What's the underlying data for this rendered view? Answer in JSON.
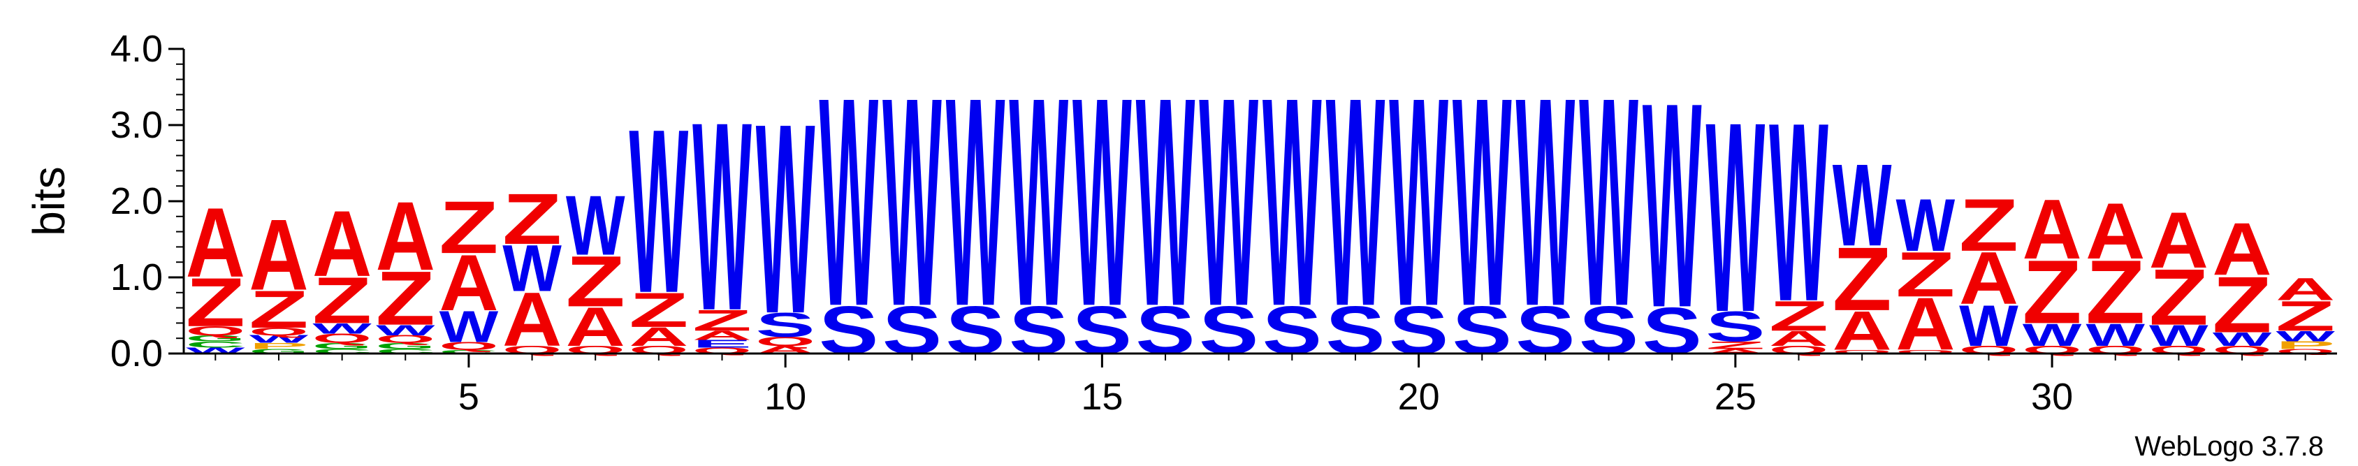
{
  "chart_data": {
    "type": "sequence-logo",
    "ylabel": "bits",
    "ylim": [
      0,
      4.0
    ],
    "yticks": [
      "0.0",
      "1.0",
      "2.0",
      "3.0",
      "4.0"
    ],
    "xticks": [
      5,
      10,
      15,
      20,
      25,
      30
    ],
    "positions": [
      1,
      34
    ],
    "credit": "WebLogo 3.7.8",
    "colors": {
      "A": "#f00000",
      "Z": "#f00000",
      "W": "#0000f0",
      "S": "#0000f0",
      "Q": "#f00000",
      "G": "#00a000",
      "C": "#00a000",
      "P": "#f0a000",
      "E": "#0000f0"
    },
    "stacks": [
      {
        "pos": 1,
        "letters": [
          [
            "W",
            0.08
          ],
          [
            "C",
            0.08
          ],
          [
            "G",
            0.08
          ],
          [
            "Q",
            0.12
          ],
          [
            "Z",
            0.65
          ],
          [
            "A",
            0.93
          ]
        ]
      },
      {
        "pos": 2,
        "letters": [
          [
            "G",
            0.06
          ],
          [
            "P",
            0.08
          ],
          [
            "W",
            0.1
          ],
          [
            "Q",
            0.1
          ],
          [
            "Z",
            0.5
          ],
          [
            "A",
            0.95
          ]
        ]
      },
      {
        "pos": 3,
        "letters": [
          [
            "C",
            0.06
          ],
          [
            "G",
            0.08
          ],
          [
            "Q",
            0.12
          ],
          [
            "W",
            0.14
          ],
          [
            "Z",
            0.62
          ],
          [
            "A",
            0.88
          ]
        ]
      },
      {
        "pos": 4,
        "letters": [
          [
            "C",
            0.06
          ],
          [
            "G",
            0.08
          ],
          [
            "Q",
            0.1
          ],
          [
            "W",
            0.14
          ],
          [
            "Z",
            0.72
          ],
          [
            "A",
            0.92
          ]
        ]
      },
      {
        "pos": 5,
        "letters": [
          [
            "C",
            0.05
          ],
          [
            "Q",
            0.1
          ],
          [
            "W",
            0.42
          ],
          [
            "A",
            0.75
          ],
          [
            "Z",
            0.7
          ]
        ]
      },
      {
        "pos": 6,
        "letters": [
          [
            "Q",
            0.1
          ],
          [
            "A",
            0.72
          ],
          [
            "W",
            0.62
          ],
          [
            "Z",
            0.68
          ]
        ]
      },
      {
        "pos": 7,
        "letters": [
          [
            "Q",
            0.1
          ],
          [
            "A",
            0.52
          ],
          [
            "Z",
            0.68
          ],
          [
            "W",
            0.8
          ]
        ]
      },
      {
        "pos": 8,
        "letters": [
          [
            "Q",
            0.1
          ],
          [
            "A",
            0.25
          ],
          [
            "Z",
            0.46
          ],
          [
            "W",
            2.2
          ]
        ]
      },
      {
        "pos": 9,
        "letters": [
          [
            "Q",
            0.08
          ],
          [
            "E",
            0.1
          ],
          [
            "A",
            0.12
          ],
          [
            "Z",
            0.28
          ],
          [
            "W",
            2.53
          ]
        ]
      },
      {
        "pos": 10,
        "letters": [
          [
            "A",
            0.1
          ],
          [
            "Q",
            0.12
          ],
          [
            "S",
            0.32
          ],
          [
            "W",
            2.55
          ]
        ]
      },
      {
        "pos": 11,
        "letters": [
          [
            "S",
            0.64
          ],
          [
            "W",
            2.8
          ]
        ]
      },
      {
        "pos": 12,
        "letters": [
          [
            "S",
            0.64
          ],
          [
            "W",
            2.8
          ]
        ]
      },
      {
        "pos": 13,
        "letters": [
          [
            "S",
            0.64
          ],
          [
            "W",
            2.8
          ]
        ]
      },
      {
        "pos": 14,
        "letters": [
          [
            "S",
            0.64
          ],
          [
            "W",
            2.8
          ]
        ]
      },
      {
        "pos": 15,
        "letters": [
          [
            "S",
            0.64
          ],
          [
            "W",
            2.8
          ]
        ]
      },
      {
        "pos": 16,
        "letters": [
          [
            "S",
            0.64
          ],
          [
            "W",
            2.8
          ]
        ]
      },
      {
        "pos": 17,
        "letters": [
          [
            "S",
            0.64
          ],
          [
            "W",
            2.8
          ]
        ]
      },
      {
        "pos": 18,
        "letters": [
          [
            "S",
            0.64
          ],
          [
            "W",
            2.8
          ]
        ]
      },
      {
        "pos": 19,
        "letters": [
          [
            "S",
            0.64
          ],
          [
            "W",
            2.8
          ]
        ]
      },
      {
        "pos": 20,
        "letters": [
          [
            "S",
            0.64
          ],
          [
            "W",
            2.8
          ]
        ]
      },
      {
        "pos": 21,
        "letters": [
          [
            "S",
            0.64
          ],
          [
            "W",
            2.8
          ]
        ]
      },
      {
        "pos": 22,
        "letters": [
          [
            "S",
            0.64
          ],
          [
            "W",
            2.8
          ]
        ]
      },
      {
        "pos": 23,
        "letters": [
          [
            "S",
            0.64
          ],
          [
            "W",
            2.8
          ]
        ]
      },
      {
        "pos": 24,
        "letters": [
          [
            "S",
            0.62
          ],
          [
            "W",
            2.75
          ]
        ]
      },
      {
        "pos": 25,
        "letters": [
          [
            "A",
            0.06
          ],
          [
            "Z",
            0.1
          ],
          [
            "S",
            0.4
          ],
          [
            "W",
            2.55
          ]
        ]
      },
      {
        "pos": 26,
        "letters": [
          [
            "Q",
            0.1
          ],
          [
            "A",
            0.2
          ],
          [
            "Z",
            0.4
          ],
          [
            "W",
            2.4
          ]
        ]
      },
      {
        "pos": 27,
        "letters": [
          [
            "Q",
            0.05
          ],
          [
            "A",
            0.52
          ],
          [
            "Z",
            0.85
          ],
          [
            "W",
            1.1
          ]
        ]
      },
      {
        "pos": 28,
        "letters": [
          [
            "Q",
            0.05
          ],
          [
            "A",
            0.7
          ],
          [
            "Z",
            0.6
          ],
          [
            "W",
            0.7
          ]
        ]
      },
      {
        "pos": 29,
        "letters": [
          [
            "Q",
            0.1
          ],
          [
            "W",
            0.55
          ],
          [
            "A",
            0.7
          ],
          [
            "Z",
            0.7
          ]
        ]
      },
      {
        "pos": 30,
        "letters": [
          [
            "Q",
            0.1
          ],
          [
            "W",
            0.3
          ],
          [
            "Z",
            0.85
          ],
          [
            "A",
            0.8
          ]
        ]
      },
      {
        "pos": 31,
        "letters": [
          [
            "Q",
            0.1
          ],
          [
            "W",
            0.3
          ],
          [
            "Z",
            0.85
          ],
          [
            "A",
            0.75
          ]
        ]
      },
      {
        "pos": 32,
        "letters": [
          [
            "Q",
            0.1
          ],
          [
            "W",
            0.28
          ],
          [
            "Z",
            0.75
          ],
          [
            "A",
            0.75
          ]
        ]
      },
      {
        "pos": 33,
        "letters": [
          [
            "Q",
            0.1
          ],
          [
            "W",
            0.18
          ],
          [
            "Z",
            0.75
          ],
          [
            "A",
            0.7
          ]
        ]
      },
      {
        "pos": 34,
        "letters": [
          [
            "Q",
            0.06
          ],
          [
            "P",
            0.1
          ],
          [
            "W",
            0.14
          ],
          [
            "Z",
            0.4
          ],
          [
            "A",
            0.3
          ]
        ]
      }
    ]
  }
}
